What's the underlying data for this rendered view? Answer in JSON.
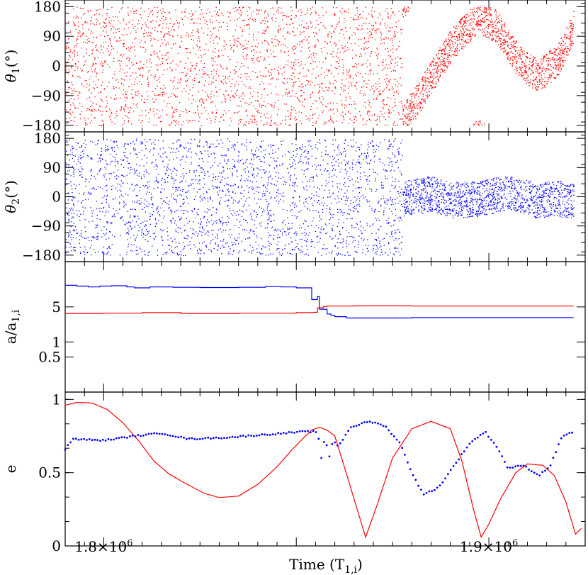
{
  "chart_data": {
    "type": "scatter",
    "xlabel": "Time (T",
    "xlabel_sub": "1,i",
    "xlabel_close": ")",
    "xrange": [
      1790000,
      1925000
    ],
    "xticks": [
      {
        "value": 1800000,
        "mantissa": "1.8×10",
        "exp": "6"
      },
      {
        "value": 1900000,
        "mantissa": "1.9×10",
        "exp": "6"
      }
    ],
    "colors": {
      "inner": "#ff0000",
      "outer": "#0000ff"
    },
    "panels": [
      {
        "id": "theta1",
        "ylabel_sym": "θ",
        "ylabel_sub": "1",
        "ylabel_unit": "(°)",
        "yrange": [
          -200,
          200
        ],
        "yticks": [
          {
            "value": 180,
            "label": "180"
          },
          {
            "value": 90,
            "label": "90"
          },
          {
            "value": 0,
            "label": "0"
          },
          {
            "value": -90,
            "label": "−90"
          },
          {
            "value": -180,
            "label": "−180"
          }
        ],
        "series": [
          {
            "color": "inner",
            "circulating_until": 1877500,
            "libration": [
              [
                1877500,
                -170
              ],
              [
                1882000,
                -90
              ],
              [
                1890000,
                60
              ],
              [
                1897000,
                150
              ],
              [
                1902000,
                120
              ],
              [
                1908000,
                10
              ],
              [
                1913000,
                -30
              ],
              [
                1918000,
                20
              ],
              [
                1922000,
                120
              ]
            ],
            "half_amplitude": 50
          }
        ]
      },
      {
        "id": "theta2",
        "ylabel_sym": "θ",
        "ylabel_sub": "2",
        "ylabel_unit": "(°)",
        "yrange": [
          -200,
          200
        ],
        "yticks": [
          {
            "value": 180,
            "label": "180"
          },
          {
            "value": 90,
            "label": "90"
          },
          {
            "value": 0,
            "label": "0"
          },
          {
            "value": -90,
            "label": "−90"
          },
          {
            "value": -180,
            "label": "−180"
          }
        ],
        "series": [
          {
            "color": "outer",
            "circulating_until": 1877500,
            "libration": [
              [
                1877500,
                -5
              ],
              [
                1885000,
                10
              ],
              [
                1890000,
                -10
              ],
              [
                1898000,
                -5
              ],
              [
                1905000,
                15
              ],
              [
                1912000,
                -10
              ],
              [
                1918000,
                -5
              ],
              [
                1922000,
                -15
              ]
            ],
            "half_amplitude": 55
          }
        ]
      },
      {
        "id": "a-ratio",
        "ylabel_text": "a/a",
        "ylabel_sub": "1,i",
        "scale": "log",
        "yrange": [
          0.1,
          40
        ],
        "yticks": [
          {
            "value": 5,
            "label": "5"
          },
          {
            "value": 1,
            "label": "1"
          },
          {
            "value": 0.5,
            "label": "0.5"
          }
        ],
        "series": [
          {
            "color": "outer",
            "style": "step",
            "points": [
              [
                1790000,
                13.5
              ],
              [
                1793000,
                13
              ],
              [
                1796000,
                12.5
              ],
              [
                1799000,
                13
              ],
              [
                1802000,
                13.2
              ],
              [
                1806000,
                12.5
              ],
              [
                1808000,
                12
              ],
              [
                1812000,
                12.5
              ],
              [
                1818000,
                12.3
              ],
              [
                1825000,
                12.2
              ],
              [
                1835000,
                12.3
              ],
              [
                1842000,
                12.7
              ],
              [
                1846000,
                12.5
              ],
              [
                1850000,
                12
              ],
              [
                1853500,
                12
              ],
              [
                1854000,
                7
              ],
              [
                1855500,
                8
              ],
              [
                1856000,
                4.5
              ],
              [
                1858000,
                3.6
              ],
              [
                1859000,
                3.4
              ],
              [
                1860000,
                3.2
              ],
              [
                1863000,
                3.0
              ],
              [
                1880000,
                3.05
              ],
              [
                1922000,
                3.05
              ]
            ]
          },
          {
            "color": "inner",
            "style": "step",
            "points": [
              [
                1790000,
                3.7
              ],
              [
                1800000,
                3.75
              ],
              [
                1810000,
                3.85
              ],
              [
                1820000,
                3.7
              ],
              [
                1835000,
                3.75
              ],
              [
                1850000,
                3.85
              ],
              [
                1854500,
                3.9
              ],
              [
                1855500,
                4.8
              ],
              [
                1857000,
                5.1
              ],
              [
                1858000,
                5.2
              ],
              [
                1865000,
                5.25
              ],
              [
                1880000,
                5.2
              ],
              [
                1922000,
                5.2
              ]
            ]
          }
        ]
      },
      {
        "id": "eccentricity",
        "ylabel_text": "e",
        "yrange": [
          0,
          1.05
        ],
        "yticks": [
          {
            "value": 1,
            "label": "1"
          },
          {
            "value": 0.5,
            "label": "0.5"
          },
          {
            "value": 0,
            "label": "0"
          }
        ],
        "series": [
          {
            "color": "inner",
            "style": "line",
            "points": [
              [
                1790000,
                0.96
              ],
              [
                1793000,
                0.98
              ],
              [
                1797000,
                0.975
              ],
              [
                1801000,
                0.93
              ],
              [
                1805000,
                0.84
              ],
              [
                1809000,
                0.72
              ],
              [
                1813000,
                0.58
              ],
              [
                1817000,
                0.49
              ],
              [
                1821000,
                0.43
              ],
              [
                1826000,
                0.36
              ],
              [
                1830000,
                0.33
              ],
              [
                1835000,
                0.34
              ],
              [
                1840000,
                0.42
              ],
              [
                1845000,
                0.54
              ],
              [
                1849000,
                0.66
              ],
              [
                1852000,
                0.74
              ],
              [
                1854000,
                0.79
              ],
              [
                1856000,
                0.81
              ],
              [
                1858000,
                0.79
              ],
              [
                1860000,
                0.75
              ],
              [
                1862000,
                0.58
              ],
              [
                1865000,
                0.32
              ],
              [
                1868000,
                0.06
              ],
              [
                1871000,
                0.28
              ],
              [
                1875000,
                0.6
              ],
              [
                1880000,
                0.8
              ],
              [
                1885000,
                0.85
              ],
              [
                1890000,
                0.8
              ],
              [
                1893000,
                0.58
              ],
              [
                1896000,
                0.25
              ],
              [
                1898000,
                0.06
              ],
              [
                1900000,
                0.15
              ],
              [
                1903000,
                0.32
              ],
              [
                1907000,
                0.5
              ],
              [
                1910000,
                0.56
              ],
              [
                1914000,
                0.55
              ],
              [
                1917000,
                0.48
              ],
              [
                1920000,
                0.3
              ],
              [
                1922500,
                0.08
              ],
              [
                1924000,
                0.12
              ]
            ]
          },
          {
            "color": "outer",
            "style": "dots",
            "points": [
              [
                1790000,
                0.66
              ],
              [
                1792000,
                0.73
              ],
              [
                1800000,
                0.72
              ],
              [
                1808000,
                0.75
              ],
              [
                1815000,
                0.77
              ],
              [
                1822000,
                0.73
              ],
              [
                1832000,
                0.74
              ],
              [
                1842000,
                0.76
              ],
              [
                1852000,
                0.78
              ],
              [
                1855500,
                0.78
              ],
              [
                1856500,
                0.6
              ],
              [
                1857500,
                0.75
              ],
              [
                1858500,
                0.6
              ],
              [
                1859500,
                0.72
              ],
              [
                1861000,
                0.68
              ],
              [
                1864000,
                0.81
              ],
              [
                1869000,
                0.85
              ],
              [
                1873000,
                0.82
              ],
              [
                1877000,
                0.7
              ],
              [
                1880000,
                0.5
              ],
              [
                1883000,
                0.35
              ],
              [
                1887000,
                0.4
              ],
              [
                1891000,
                0.55
              ],
              [
                1895000,
                0.7
              ],
              [
                1899000,
                0.78
              ],
              [
                1902000,
                0.68
              ],
              [
                1905000,
                0.53
              ],
              [
                1909000,
                0.55
              ],
              [
                1913000,
                0.48
              ],
              [
                1916000,
                0.55
              ],
              [
                1919000,
                0.75
              ],
              [
                1922000,
                0.78
              ]
            ]
          }
        ]
      }
    ]
  }
}
